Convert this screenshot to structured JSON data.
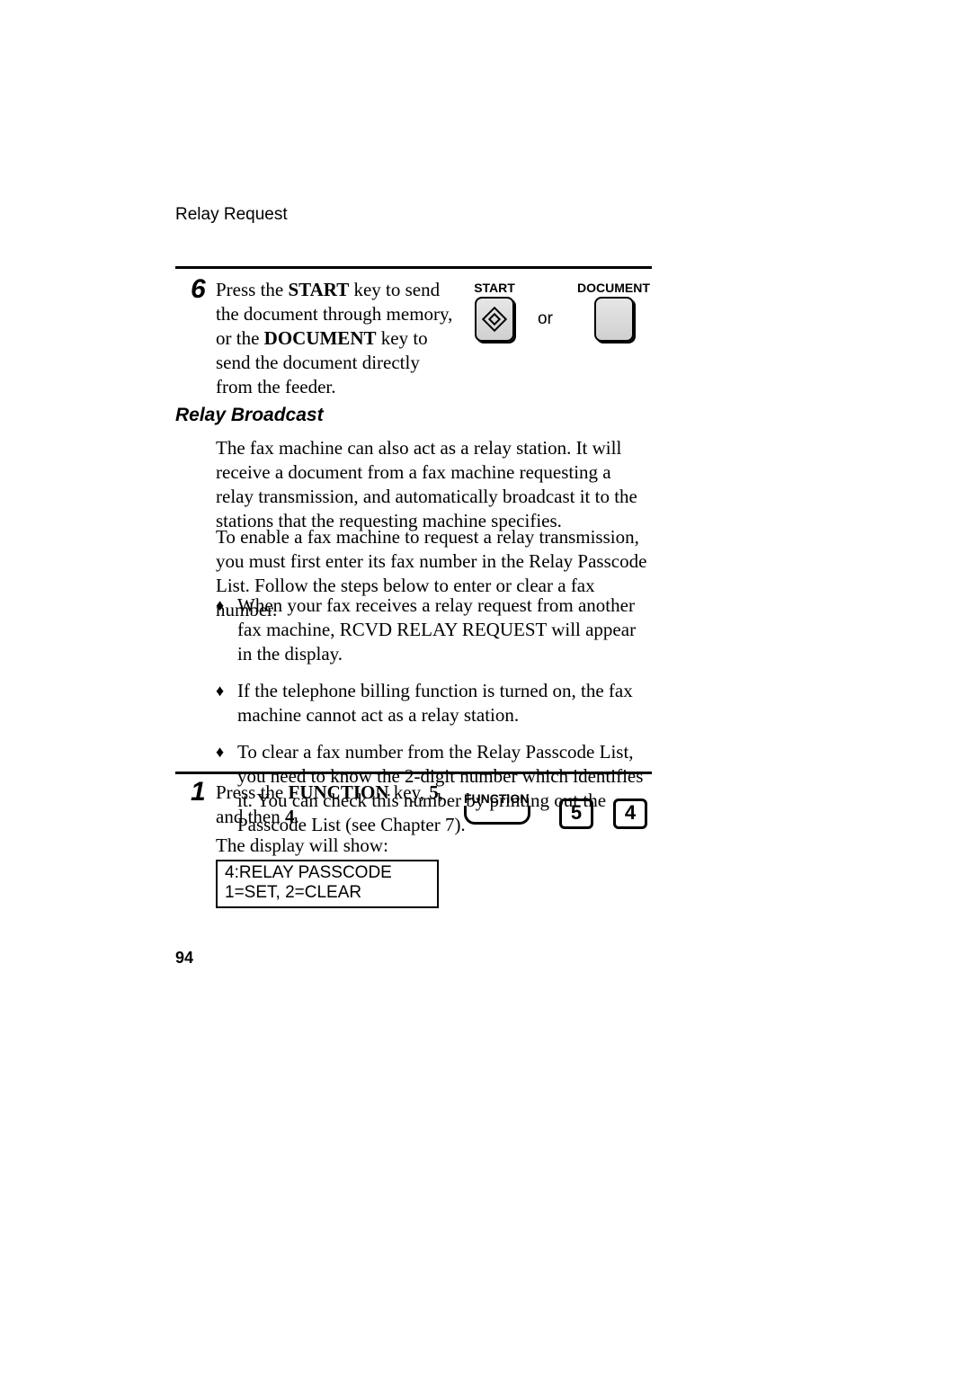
{
  "header": {
    "running": "Relay Request"
  },
  "step6": {
    "num": "6",
    "text_parts": [
      "Press the ",
      "START",
      " key to send the document through memory, or the ",
      "DOCUMENT",
      " key to send the document directly from the feeder."
    ]
  },
  "keys6": {
    "start_label": "START",
    "doc_label": "DOCUMENT",
    "or": "or"
  },
  "section": {
    "title": "Relay Broadcast"
  },
  "para1": "The fax machine can also act as a relay station. It will receive a document from a fax machine requesting a relay transmission, and automatically broadcast it to the stations that the requesting machine specifies.",
  "para2": "To enable a fax machine to request a relay transmission, you must first enter its fax number in the Relay Passcode List. Follow the steps below to enter or clear a fax number.",
  "bullets": [
    "When your fax receives a relay request from another fax machine, RCVD RELAY REQUEST will appear in the display.",
    "If the telephone billing function is turned on, the fax machine cannot act as a relay station.",
    "To clear a fax number from the Relay Passcode List, you need to know the 2-digit number which identifies it. You can check this number by printing out the Passcode List (see Chapter 7)."
  ],
  "step1": {
    "num": "1",
    "text_parts": [
      "Press the ",
      "FUNCTION",
      " key, ",
      "5",
      ", and then ",
      "4",
      "."
    ]
  },
  "display": {
    "label": "The display will show:",
    "line1": "4:RELAY PASSCODE",
    "line2": "1=SET, 2=CLEAR"
  },
  "keys1": {
    "func_label": "FUNCTION",
    "d5": "5",
    "d4": "4"
  },
  "page_number": "94"
}
